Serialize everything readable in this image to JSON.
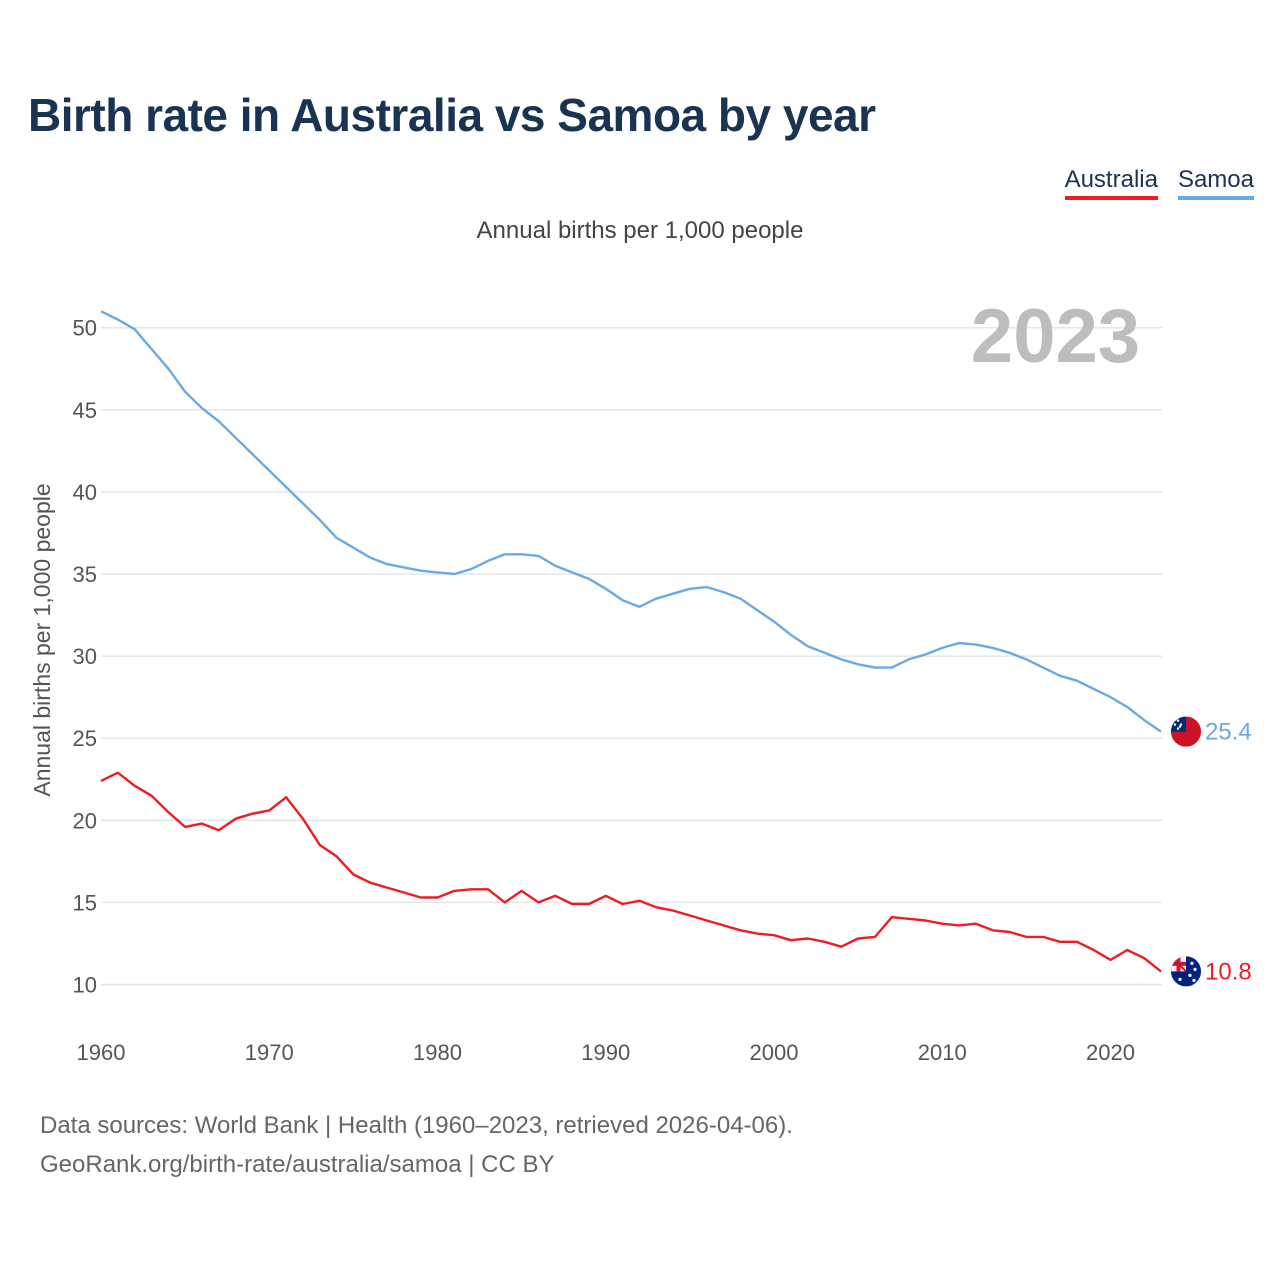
{
  "title": "Birth rate in Australia vs Samoa by year",
  "subtitle": "Annual births per 1,000 people",
  "legend": [
    {
      "label": "Australia",
      "color": "#ee1c25"
    },
    {
      "label": "Samoa",
      "color": "#6aa9e4"
    }
  ],
  "year_watermark": "2023",
  "footer": {
    "line1": "Data sources: World Bank | Health (1960–2023, retrieved 2026-04-06).",
    "line2": "GeoRank.org/birth-rate/australia/samoa | CC BY"
  },
  "chart_data": {
    "type": "line",
    "title": "Birth rate in Australia vs Samoa by year",
    "ylabel": "Annual births per 1,000 people",
    "xlabel": "",
    "xlim": [
      1960,
      2023
    ],
    "ylim": [
      10,
      51
    ],
    "x_ticks": [
      1960,
      1970,
      1980,
      1990,
      2000,
      2010,
      2020
    ],
    "y_ticks": [
      10,
      15,
      20,
      25,
      30,
      35,
      40,
      45,
      50
    ],
    "grid": true,
    "legend_position": "top-right",
    "x": [
      1960,
      1961,
      1962,
      1963,
      1964,
      1965,
      1966,
      1967,
      1968,
      1969,
      1970,
      1971,
      1972,
      1973,
      1974,
      1975,
      1976,
      1977,
      1978,
      1979,
      1980,
      1981,
      1982,
      1983,
      1984,
      1985,
      1986,
      1987,
      1988,
      1989,
      1990,
      1991,
      1992,
      1993,
      1994,
      1995,
      1996,
      1997,
      1998,
      1999,
      2000,
      2001,
      2002,
      2003,
      2004,
      2005,
      2006,
      2007,
      2008,
      2009,
      2010,
      2011,
      2012,
      2013,
      2014,
      2015,
      2016,
      2017,
      2018,
      2019,
      2020,
      2021,
      2022,
      2023
    ],
    "series": [
      {
        "name": "Australia",
        "color": "#ee1c25",
        "end_label": "10.8",
        "values": [
          22.4,
          22.9,
          22.1,
          21.5,
          20.5,
          19.6,
          19.8,
          19.4,
          20.1,
          20.4,
          20.6,
          21.4,
          20.1,
          18.5,
          17.8,
          16.7,
          16.2,
          15.9,
          15.6,
          15.3,
          15.3,
          15.7,
          15.8,
          15.8,
          15.0,
          15.7,
          15.0,
          15.4,
          14.9,
          14.9,
          15.4,
          14.9,
          15.1,
          14.7,
          14.5,
          14.2,
          13.9,
          13.6,
          13.3,
          13.1,
          13.0,
          12.7,
          12.8,
          12.6,
          12.3,
          12.8,
          12.9,
          14.1,
          14.0,
          13.9,
          13.7,
          13.6,
          13.7,
          13.3,
          13.2,
          12.9,
          12.9,
          12.6,
          12.6,
          12.1,
          11.5,
          12.1,
          11.6,
          10.8
        ]
      },
      {
        "name": "Samoa",
        "color": "#6aa9e4",
        "end_label": "25.4",
        "values": [
          51.0,
          50.5,
          49.9,
          48.7,
          47.5,
          46.1,
          45.1,
          44.3,
          43.3,
          42.3,
          41.3,
          40.3,
          39.3,
          38.3,
          37.2,
          36.6,
          36.0,
          35.6,
          35.4,
          35.2,
          35.1,
          35.0,
          35.3,
          35.8,
          36.2,
          36.2,
          36.1,
          35.5,
          35.1,
          34.7,
          34.1,
          33.4,
          33.0,
          33.5,
          33.8,
          34.1,
          34.2,
          33.9,
          33.5,
          32.8,
          32.1,
          31.3,
          30.6,
          30.2,
          29.8,
          29.5,
          29.3,
          29.3,
          29.8,
          30.1,
          30.5,
          30.8,
          30.7,
          30.5,
          30.2,
          29.8,
          29.3,
          28.8,
          28.5,
          28.0,
          27.5,
          26.9,
          26.1,
          25.4
        ]
      }
    ]
  }
}
